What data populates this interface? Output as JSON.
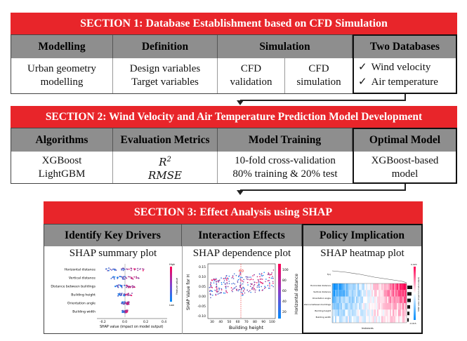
{
  "section1": {
    "title": "SECTION 1: Database Establishment based on CFD Simulation",
    "headers": [
      "Modelling",
      "Definition",
      "Simulation",
      "Two Databases"
    ],
    "modelling": [
      "Urban geometry",
      "modelling"
    ],
    "definition": [
      "Design variables",
      "Target variables"
    ],
    "simulation": [
      [
        "CFD",
        "validation"
      ],
      [
        "CFD",
        "simulation"
      ]
    ],
    "databases": [
      "Wind velocity",
      "Air temperature"
    ],
    "check": "✓"
  },
  "section2": {
    "title": "SECTION 2: Wind Velocity and Air Temperature Prediction Model Development",
    "headers": [
      "Algorithms",
      "Evaluation Metrics",
      "Model Training",
      "Optimal Model"
    ],
    "algorithms": [
      "XGBoost",
      "LightGBM"
    ],
    "metrics": [
      "R",
      "2",
      "RMSE"
    ],
    "training": [
      "10-fold cross-validation",
      "80% training & 20% test"
    ],
    "optimal": [
      "XGBoost-based",
      "model"
    ]
  },
  "section3": {
    "title": "SECTION 3: Effect Analysis using SHAP",
    "headers": [
      "Identify Key Drivers",
      "Interaction Effects",
      "Policy Implication"
    ],
    "subtitles": [
      "SHAP summary plot",
      "SHAP dependence plot",
      "SHAP heatmap plot"
    ],
    "summary_features": [
      "Horizontal distance",
      "Vertical distance",
      "Distance between buildings",
      "Building height",
      "Orientation angle",
      "Building width"
    ],
    "summary_xlabel": "SHAP value (impact on model output)",
    "summary_ticks": [
      "-0.2",
      "0.0",
      "0.2",
      "0.4"
    ],
    "summary_colorbar": [
      "High",
      "Feature value",
      "Low"
    ],
    "dependence_ylabel": "SHAP Value for H",
    "dependence_xlabel": "Building height",
    "dependence_colorbar": "Horizontal distance",
    "dependence_yticks": [
      "0.15",
      "0.10",
      "0.05",
      "0.00",
      "-0.05",
      "-0.10"
    ],
    "dependence_xticks": [
      "30",
      "40",
      "50",
      "60",
      "70",
      "80",
      "90",
      "100"
    ],
    "dependence_cticks": [
      "100",
      "80",
      "60",
      "40",
      "20"
    ],
    "dependence_annot": "60",
    "heatmap_features": [
      "f(x)",
      "Horizontal distance",
      "Vertical distance",
      "Orientation angle",
      "Distance between buildings",
      "Building height",
      "Building width"
    ],
    "heatmap_xlabel": "Instances",
    "heatmap_cbar": [
      "0.020",
      "SHAP value (impact on model output)",
      "-0.015"
    ]
  },
  "colors": {
    "banner": "#e8252a",
    "header": "#8e8e8e",
    "shap_high": "#ff0052",
    "shap_low": "#008bfb"
  }
}
